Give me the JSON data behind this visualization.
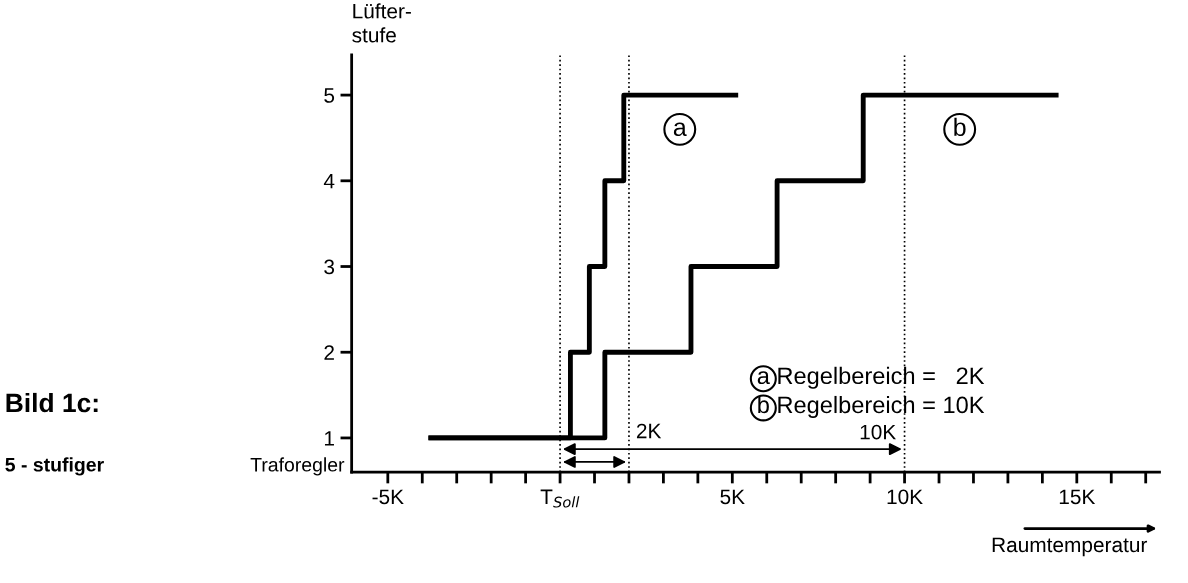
{
  "chart_data": {
    "type": "step",
    "xlabel": "Raumtemperatur",
    "ylabel": "Lüfter-\nstufe",
    "series": [
      {
        "name": "a",
        "color": "#000000",
        "x": [
          -3.75,
          0.3,
          0.85,
          1.3,
          1.85,
          5.1
        ],
        "values": [
          1,
          2,
          3,
          4,
          5,
          5
        ]
      },
      {
        "name": "b",
        "color": "#000000",
        "x": [
          -3.75,
          1.3,
          3.8,
          6.3,
          8.8,
          14.4
        ],
        "values": [
          1,
          2,
          3,
          4,
          5,
          5
        ]
      }
    ],
    "xlim": [
      -6.05,
      17.4
    ],
    "ylim": [
      0.6,
      5.47
    ],
    "xticks": [
      {
        "value": -5,
        "label": "-5K"
      },
      {
        "value": -4,
        "label": null
      },
      {
        "value": -3,
        "label": null
      },
      {
        "value": -2,
        "label": null
      },
      {
        "value": -1,
        "label": null
      },
      {
        "value": 0,
        "label": "T$_{Soll}$"
      },
      {
        "value": 1,
        "label": null
      },
      {
        "value": 2,
        "label": null
      },
      {
        "value": 3,
        "label": null
      },
      {
        "value": 4,
        "label": null
      },
      {
        "value": 5,
        "label": "5K"
      },
      {
        "value": 6,
        "label": null
      },
      {
        "value": 7,
        "label": null
      },
      {
        "value": 8,
        "label": null
      },
      {
        "value": 9,
        "label": null
      },
      {
        "value": 10,
        "label": "10K"
      },
      {
        "value": 11,
        "label": null
      },
      {
        "value": 12,
        "label": null
      },
      {
        "value": 13,
        "label": null
      },
      {
        "value": 14,
        "label": null
      },
      {
        "value": 15,
        "label": "15K"
      },
      {
        "value": 16,
        "label": null
      },
      {
        "value": 17,
        "label": null
      }
    ],
    "yticks": [
      1,
      2,
      3,
      4,
      5
    ],
    "ref_lines": [
      {
        "axis": "x",
        "value": 0,
        "color": "#000000",
        "line_style": "dotted"
      },
      {
        "axis": "x",
        "value": 2,
        "color": "#000000",
        "line_style": "dotted"
      },
      {
        "axis": "x",
        "value": 10,
        "color": "#000000",
        "line_style": "dotted"
      }
    ],
    "annotations": [
      {
        "text": "2K",
        "x": 2,
        "y": 0.72
      },
      {
        "text": "10K",
        "x": 10,
        "y": 0.87
      },
      "a Regelbereich =   2K",
      "b Regelbereich = 10K",
      "Bild 1c:",
      "5 - stufiger",
      "Traforegler"
    ],
    "grid": false,
    "legend": false,
    "marker": "none",
    "line_style": "solid"
  }
}
